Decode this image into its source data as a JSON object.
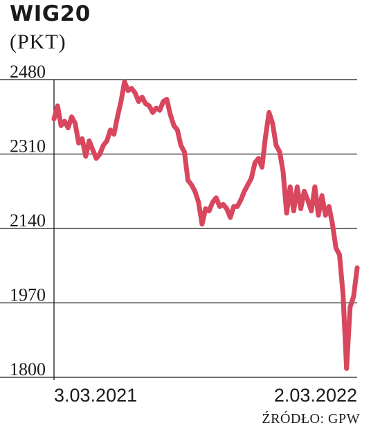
{
  "title": "WIG20",
  "unit_label": "(PKT)",
  "source": "ŹRÓDŁO: GPW",
  "colors": {
    "line": "#d8475e",
    "grid": "#1a1a1a",
    "text": "#1a1a1a"
  },
  "chart_data": {
    "type": "line",
    "title": "WIG20",
    "ylabel": "(PKT)",
    "ylim": [
      1800,
      2480
    ],
    "y_ticks": [
      "2480",
      "2310",
      "2140",
      "1970",
      "1800"
    ],
    "x_tick_labels": [
      "3.03.2021",
      "2.03.2022"
    ],
    "x_range": [
      "2021-03-03",
      "2022-03-02"
    ],
    "grid": "horizontal",
    "legend": "none",
    "series": [
      {
        "values": [
          2390,
          2420,
          2375,
          2385,
          2370,
          2395,
          2380,
          2335,
          2345,
          2305,
          2340,
          2320,
          2300,
          2310,
          2330,
          2340,
          2365,
          2355,
          2395,
          2430,
          2475,
          2455,
          2460,
          2450,
          2430,
          2440,
          2425,
          2420,
          2405,
          2415,
          2410,
          2430,
          2435,
          2400,
          2375,
          2365,
          2330,
          2315,
          2250,
          2240,
          2225,
          2200,
          2150,
          2185,
          2180,
          2200,
          2210,
          2190,
          2195,
          2185,
          2165,
          2190,
          2190,
          2205,
          2225,
          2240,
          2255,
          2290,
          2300,
          2280,
          2350,
          2405,
          2380,
          2330,
          2315,
          2270,
          2175,
          2235,
          2180,
          2235,
          2185,
          2225,
          2205,
          2180,
          2235,
          2170,
          2215,
          2170,
          2190,
          2150,
          2095,
          2080,
          1990,
          1820,
          1960,
          1985,
          2050
        ]
      }
    ]
  }
}
